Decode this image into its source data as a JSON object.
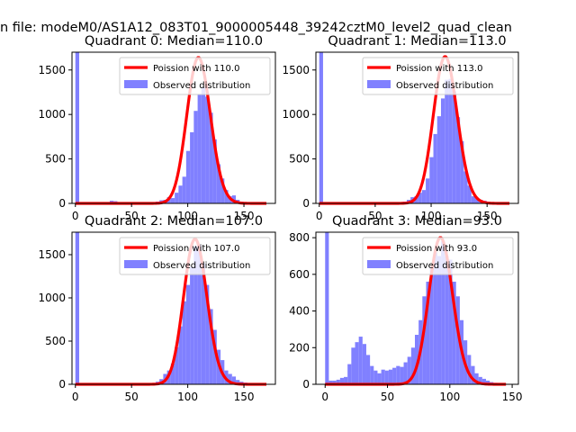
{
  "figure_title": "n file: modeM0/AS1A12_083T01_9000005448_39242cztM0_level2_quad_clean",
  "chart_data": [
    {
      "type": "bar",
      "title": "Quadrant 0: Median=110.0",
      "xlim": [
        -3,
        178
      ],
      "ylim": [
        0,
        1700
      ],
      "xticks": [
        0,
        50,
        100,
        150
      ],
      "yticks": [
        0,
        500,
        1000,
        1500
      ],
      "grid": false,
      "legend_position": "top-right",
      "legend": [
        "Poission with 110.0",
        "Observed distribution"
      ],
      "colors": {
        "fit": "#ff0000",
        "hist": "#8080ff"
      },
      "bin_width": 3.4,
      "bins": [
        [
          0,
          1700
        ],
        [
          3.4,
          10
        ],
        [
          6.8,
          8
        ],
        [
          10.2,
          8
        ],
        [
          13.6,
          8
        ],
        [
          17,
          8
        ],
        [
          20.4,
          8
        ],
        [
          23.8,
          8
        ],
        [
          27.2,
          8
        ],
        [
          30.6,
          30
        ],
        [
          34,
          25
        ],
        [
          37.4,
          15
        ],
        [
          40.8,
          10
        ],
        [
          44.2,
          8
        ],
        [
          47.6,
          8
        ],
        [
          51,
          8
        ],
        [
          54.4,
          8
        ],
        [
          57.8,
          8
        ],
        [
          61.2,
          8
        ],
        [
          64.6,
          10
        ],
        [
          68,
          15
        ],
        [
          71.4,
          20
        ],
        [
          74.8,
          35
        ],
        [
          78.2,
          40
        ],
        [
          81.6,
          70
        ],
        [
          85,
          60
        ],
        [
          88.4,
          120
        ],
        [
          91.8,
          200
        ],
        [
          95.2,
          300
        ],
        [
          98.6,
          590
        ],
        [
          102,
          800
        ],
        [
          105.4,
          1040
        ],
        [
          108.8,
          1230
        ],
        [
          112.2,
          1300
        ],
        [
          115.6,
          1200
        ],
        [
          119,
          1020
        ],
        [
          122.4,
          720
        ],
        [
          125.8,
          440
        ],
        [
          129.2,
          280
        ],
        [
          132.6,
          150
        ],
        [
          136,
          80
        ],
        [
          139.4,
          90
        ],
        [
          142.8,
          40
        ],
        [
          146.2,
          20
        ],
        [
          149.6,
          15
        ],
        [
          153,
          10
        ],
        [
          156.4,
          8
        ],
        [
          159.8,
          5
        ],
        [
          163.2,
          3
        ],
        [
          166.6,
          2
        ]
      ],
      "fit": {
        "name": "Poission with 110.0",
        "mean": 110.0,
        "peak": 1640,
        "x_range": [
          0,
          170
        ]
      }
    },
    {
      "type": "bar",
      "title": "Quadrant 1: Median=113.0",
      "xlim": [
        -3,
        178
      ],
      "ylim": [
        0,
        1700
      ],
      "xticks": [
        0,
        50,
        100,
        150
      ],
      "yticks": [
        0,
        500,
        1000,
        1500
      ],
      "grid": false,
      "legend_position": "top-right",
      "legend": [
        "Poission with 113.0",
        "Observed distribution"
      ],
      "colors": {
        "fit": "#ff0000",
        "hist": "#8080ff"
      },
      "bin_width": 3.4,
      "bins": [
        [
          0,
          1700
        ],
        [
          3.4,
          8
        ],
        [
          6.8,
          8
        ],
        [
          10.2,
          8
        ],
        [
          13.6,
          8
        ],
        [
          17,
          8
        ],
        [
          20.4,
          8
        ],
        [
          23.8,
          8
        ],
        [
          27.2,
          8
        ],
        [
          30.6,
          8
        ],
        [
          34,
          8
        ],
        [
          37.4,
          8
        ],
        [
          40.8,
          8
        ],
        [
          44.2,
          8
        ],
        [
          47.6,
          8
        ],
        [
          51,
          8
        ],
        [
          54.4,
          8
        ],
        [
          57.8,
          8
        ],
        [
          61.2,
          8
        ],
        [
          64.6,
          10
        ],
        [
          68,
          10
        ],
        [
          71.4,
          15
        ],
        [
          74.8,
          20
        ],
        [
          78.2,
          40
        ],
        [
          81.6,
          70
        ],
        [
          85,
          80
        ],
        [
          88.4,
          120
        ],
        [
          91.8,
          150
        ],
        [
          95.2,
          280
        ],
        [
          98.6,
          520
        ],
        [
          102,
          780
        ],
        [
          105.4,
          980
        ],
        [
          108.8,
          1180
        ],
        [
          112.2,
          1390
        ],
        [
          115.6,
          1400
        ],
        [
          119,
          1260
        ],
        [
          122.4,
          970
        ],
        [
          125.8,
          700
        ],
        [
          129.2,
          360
        ],
        [
          132.6,
          200
        ],
        [
          136,
          80
        ],
        [
          139.4,
          60
        ],
        [
          142.8,
          40
        ],
        [
          146.2,
          30
        ],
        [
          149.6,
          20
        ],
        [
          153,
          10
        ],
        [
          156.4,
          5
        ],
        [
          159.8,
          3
        ],
        [
          163.2,
          2
        ]
      ],
      "fit": {
        "name": "Poission with 113.0",
        "mean": 113.0,
        "peak": 1650,
        "x_range": [
          0,
          170
        ]
      }
    },
    {
      "type": "bar",
      "title": "Quadrant 2: Median=107.0",
      "xlim": [
        -3,
        178
      ],
      "ylim": [
        0,
        1760
      ],
      "xticks": [
        0,
        50,
        100,
        150
      ],
      "yticks": [
        0,
        500,
        1000,
        1500
      ],
      "grid": false,
      "legend_position": "top-right",
      "legend": [
        "Poission with 107.0",
        "Observed distribution"
      ],
      "colors": {
        "fit": "#ff0000",
        "hist": "#8080ff"
      },
      "bin_width": 3.4,
      "bins": [
        [
          0,
          1760
        ],
        [
          3.4,
          8
        ],
        [
          6.8,
          8
        ],
        [
          10.2,
          8
        ],
        [
          13.6,
          8
        ],
        [
          17,
          8
        ],
        [
          20.4,
          8
        ],
        [
          23.8,
          8
        ],
        [
          27.2,
          8
        ],
        [
          30.6,
          8
        ],
        [
          34,
          8
        ],
        [
          37.4,
          8
        ],
        [
          40.8,
          8
        ],
        [
          44.2,
          8
        ],
        [
          47.6,
          8
        ],
        [
          51,
          8
        ],
        [
          54.4,
          8
        ],
        [
          57.8,
          8
        ],
        [
          61.2,
          8
        ],
        [
          64.6,
          10
        ],
        [
          68,
          15
        ],
        [
          71.4,
          30
        ],
        [
          74.8,
          60
        ],
        [
          78.2,
          120
        ],
        [
          81.6,
          160
        ],
        [
          85,
          240
        ],
        [
          88.4,
          430
        ],
        [
          91.8,
          670
        ],
        [
          95.2,
          960
        ],
        [
          98.6,
          1150
        ],
        [
          102,
          1360
        ],
        [
          105.4,
          1600
        ],
        [
          108.8,
          1610
        ],
        [
          112.2,
          1400
        ],
        [
          115.6,
          1150
        ],
        [
          119,
          870
        ],
        [
          122.4,
          630
        ],
        [
          125.8,
          400
        ],
        [
          129.2,
          280
        ],
        [
          132.6,
          160
        ],
        [
          136,
          120
        ],
        [
          139.4,
          90
        ],
        [
          142.8,
          50
        ],
        [
          146.2,
          30
        ],
        [
          149.6,
          20
        ],
        [
          153,
          10
        ],
        [
          156.4,
          8
        ],
        [
          159.8,
          5
        ],
        [
          163.2,
          3
        ]
      ],
      "fit": {
        "name": "Poission with 107.0",
        "mean": 107.0,
        "peak": 1680,
        "x_range": [
          0,
          170
        ]
      }
    },
    {
      "type": "bar",
      "title": "Quadrant 3: Median=93.0",
      "xlim": [
        -7.4,
        155
      ],
      "ylim": [
        0,
        830
      ],
      "xticks": [
        0,
        50,
        100,
        150
      ],
      "yticks": [
        0,
        200,
        400,
        600,
        800
      ],
      "grid": false,
      "legend_position": "top-right",
      "legend": [
        "Poission with 93.0",
        "Observed distribution"
      ],
      "colors": {
        "fit": "#ff0000",
        "hist": "#8080ff"
      },
      "bin_width": 3.0,
      "bins": [
        [
          0,
          830
        ],
        [
          3,
          20
        ],
        [
          6,
          20
        ],
        [
          9,
          25
        ],
        [
          12,
          35
        ],
        [
          15,
          40
        ],
        [
          18,
          110
        ],
        [
          21,
          200
        ],
        [
          24,
          230
        ],
        [
          27,
          260
        ],
        [
          30,
          220
        ],
        [
          33,
          160
        ],
        [
          36,
          100
        ],
        [
          39,
          75
        ],
        [
          42,
          60
        ],
        [
          45,
          80
        ],
        [
          48,
          75
        ],
        [
          51,
          80
        ],
        [
          54,
          90
        ],
        [
          57,
          100
        ],
        [
          60,
          95
        ],
        [
          63,
          120
        ],
        [
          66,
          150
        ],
        [
          69,
          200
        ],
        [
          72,
          270
        ],
        [
          75,
          350
        ],
        [
          78,
          480
        ],
        [
          81,
          560
        ],
        [
          84,
          640
        ],
        [
          87,
          720
        ],
        [
          90,
          700
        ],
        [
          93,
          780
        ],
        [
          96,
          700
        ],
        [
          99,
          680
        ],
        [
          102,
          560
        ],
        [
          105,
          480
        ],
        [
          108,
          350
        ],
        [
          111,
          240
        ],
        [
          114,
          160
        ],
        [
          117,
          100
        ],
        [
          120,
          60
        ],
        [
          123,
          40
        ],
        [
          126,
          30
        ],
        [
          129,
          20
        ],
        [
          132,
          12
        ],
        [
          135,
          8
        ],
        [
          138,
          5
        ],
        [
          141,
          3
        ],
        [
          144,
          2
        ]
      ],
      "fit": {
        "name": "Poission with 93.0",
        "mean": 93.0,
        "peak": 800,
        "x_range": [
          0,
          145
        ]
      }
    }
  ]
}
